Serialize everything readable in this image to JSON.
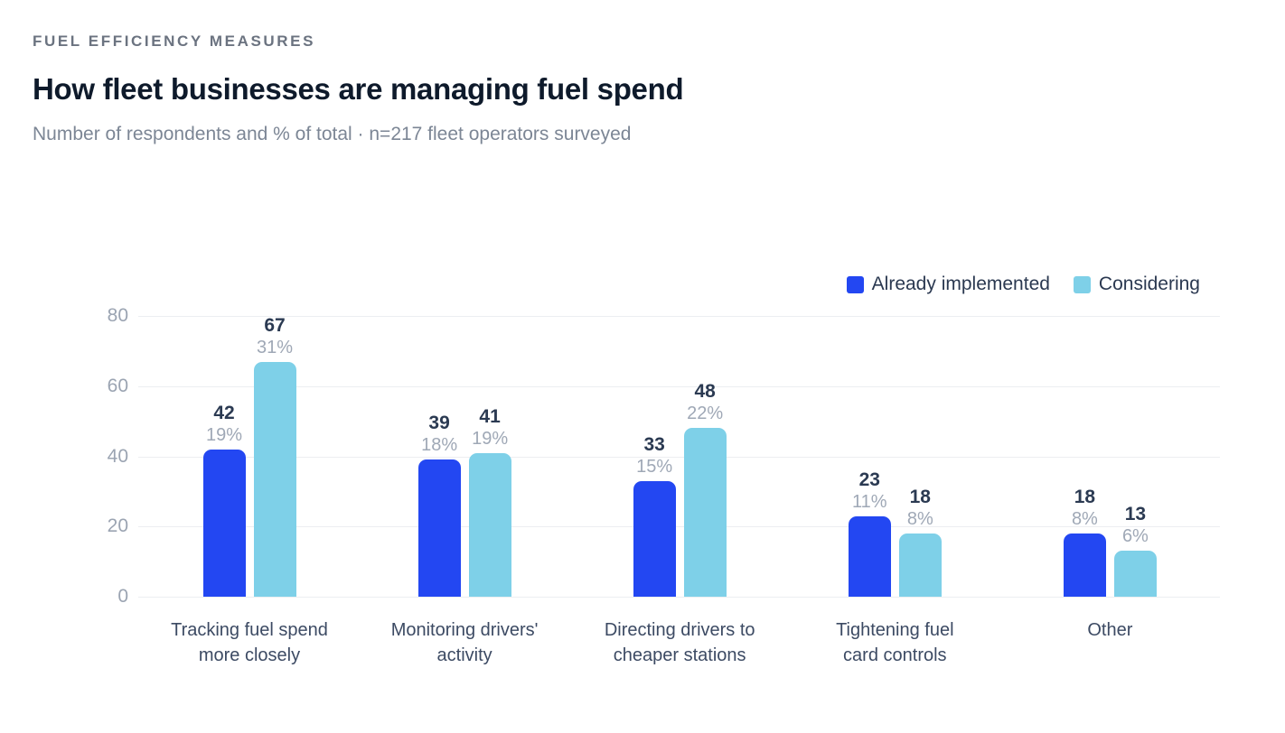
{
  "header": {
    "eyebrow": "FUEL EFFICIENCY MEASURES",
    "title": "How fleet businesses are managing fuel spend",
    "subtitle": "Number of respondents and % of total · n=217 fleet operators surveyed"
  },
  "colors": {
    "implemented": "#2347f2",
    "considering": "#7ed0e8",
    "gridline": "#eceef1",
    "value_label": "#2b3a52",
    "pct_label": "#9fa8b6",
    "axis_tick_label": "#9ba4b2",
    "category_label": "#3c4a63",
    "title_text": "#0e1a2b",
    "eyebrow_text": "#6b7380",
    "subtitle_text": "#7c8695"
  },
  "legend": {
    "items": [
      {
        "label": "Already implemented",
        "color_key": "implemented"
      },
      {
        "label": "Considering",
        "color_key": "considering"
      }
    ]
  },
  "chart_data": {
    "type": "bar",
    "title": "How fleet businesses are managing fuel spend",
    "subtitle": "Number of respondents and % of total · n=217 fleet operators surveyed",
    "categories": [
      "Tracking fuel spend more closely",
      "Monitoring drivers' activity",
      "Directing drivers to cheaper stations",
      "Tightening fuel card controls",
      "Other"
    ],
    "category_lines": [
      [
        "Tracking fuel spend",
        "more closely"
      ],
      [
        "Monitoring drivers'",
        "activity"
      ],
      [
        "Directing drivers to",
        "cheaper stations"
      ],
      [
        "Tightening fuel",
        "card controls"
      ],
      [
        "Other"
      ]
    ],
    "series": [
      {
        "name": "Already implemented",
        "color_key": "implemented",
        "values": [
          42,
          39,
          33,
          23,
          18
        ],
        "pct_labels": [
          "19%",
          "18%",
          "15%",
          "11%",
          "8%"
        ]
      },
      {
        "name": "Considering",
        "color_key": "considering",
        "values": [
          67,
          41,
          48,
          18,
          13
        ],
        "pct_labels": [
          "31%",
          "19%",
          "22%",
          "8%",
          "6%"
        ]
      }
    ],
    "xlabel": "",
    "ylabel": "",
    "ylim": [
      0,
      80
    ],
    "yticks": [
      0,
      20,
      40,
      60,
      80
    ],
    "grid": true,
    "legend_position": "top-right"
  }
}
